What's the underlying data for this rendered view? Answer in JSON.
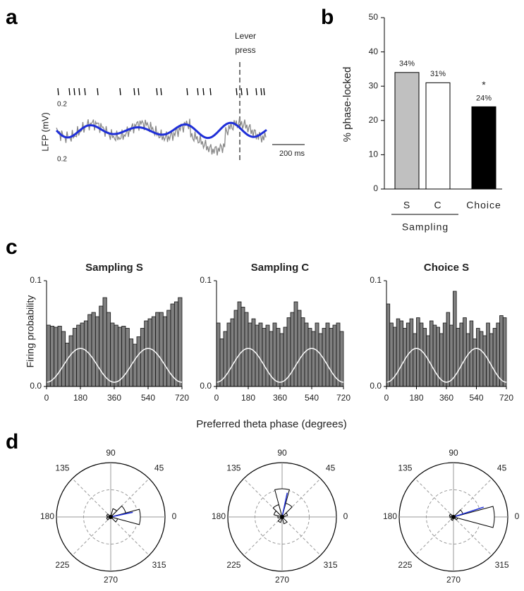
{
  "chart_data": [
    {
      "type": "trace",
      "panel": "a",
      "ylabel": "LFP (mV)",
      "ylabels": [
        "0.2",
        "0.2"
      ],
      "annotation": [
        "Lever",
        "press"
      ],
      "scalebar": "200 ms"
    },
    {
      "type": "bar",
      "panel": "b",
      "ylabel": "% phase-locked",
      "categories": [
        "S",
        "C",
        "Choice"
      ],
      "values": [
        34,
        31,
        24
      ],
      "value_labels": [
        "34%",
        "31%",
        "24%"
      ],
      "colors": [
        "#c0c0c0",
        "#ffffff",
        "#000000"
      ],
      "group_label": "Sampling",
      "annotation": "*",
      "ylim": [
        0,
        50
      ],
      "yticks": [
        0,
        10,
        20,
        30,
        40,
        50
      ]
    },
    {
      "type": "histogram",
      "panel": "c",
      "title": "Sampling S",
      "xlabel": "Preferred theta phase (degrees)",
      "ylabel": "Firing probability",
      "color": "#808080",
      "bins": [
        0,
        20,
        40,
        60,
        80,
        100,
        120,
        140,
        160,
        180,
        200,
        220,
        240,
        260,
        280,
        300,
        320,
        340,
        360,
        380,
        400,
        420,
        440,
        460,
        480,
        500,
        520,
        540,
        560,
        580,
        600,
        620,
        640,
        660,
        680,
        700,
        720
      ],
      "values": [
        0.058,
        0.057,
        0.056,
        0.057,
        0.052,
        0.041,
        0.048,
        0.055,
        0.058,
        0.06,
        0.062,
        0.068,
        0.07,
        0.066,
        0.076,
        0.084,
        0.07,
        0.06,
        0.058,
        0.056,
        0.057,
        0.055,
        0.045,
        0.04,
        0.047,
        0.055,
        0.062,
        0.064,
        0.066,
        0.07,
        0.07,
        0.066,
        0.072,
        0.078,
        0.08,
        0.084
      ],
      "xlim": [
        0,
        720
      ],
      "xticks": [
        0,
        180,
        360,
        540,
        720
      ],
      "ylim": [
        0,
        0.1
      ],
      "yticks": [
        {
          "value": 0,
          "label": "0.0"
        },
        0.1
      ]
    },
    {
      "type": "histogram",
      "title": "Sampling C",
      "color": "#808080",
      "bins": [
        0,
        20,
        40,
        60,
        80,
        100,
        120,
        140,
        160,
        180,
        200,
        220,
        240,
        260,
        280,
        300,
        320,
        340,
        360,
        380,
        400,
        420,
        440,
        460,
        480,
        500,
        520,
        540,
        560,
        580,
        600,
        620,
        640,
        660,
        680,
        700,
        720
      ],
      "values": [
        0.06,
        0.045,
        0.052,
        0.06,
        0.064,
        0.072,
        0.08,
        0.075,
        0.07,
        0.06,
        0.064,
        0.058,
        0.06,
        0.055,
        0.058,
        0.052,
        0.06,
        0.055,
        0.05,
        0.056,
        0.065,
        0.07,
        0.08,
        0.072,
        0.065,
        0.06,
        0.055,
        0.052,
        0.06,
        0.05,
        0.055,
        0.06,
        0.055,
        0.058,
        0.06,
        0.052
      ],
      "xlim": [
        0,
        720
      ],
      "xticks": [
        0,
        180,
        360,
        540,
        720
      ],
      "ylim": [
        0,
        0.1
      ],
      "yticks": [
        {
          "value": 0,
          "label": "0.0"
        },
        0.1
      ]
    },
    {
      "type": "histogram",
      "title": "Choice S",
      "color": "#808080",
      "bins": [
        0,
        20,
        40,
        60,
        80,
        100,
        120,
        140,
        160,
        180,
        200,
        220,
        240,
        260,
        280,
        300,
        320,
        340,
        360,
        380,
        400,
        420,
        440,
        460,
        480,
        500,
        520,
        540,
        560,
        580,
        600,
        620,
        640,
        660,
        680,
        700,
        720
      ],
      "values": [
        0.078,
        0.06,
        0.056,
        0.064,
        0.062,
        0.055,
        0.06,
        0.064,
        0.05,
        0.065,
        0.06,
        0.055,
        0.048,
        0.062,
        0.058,
        0.056,
        0.05,
        0.06,
        0.07,
        0.058,
        0.09,
        0.055,
        0.06,
        0.065,
        0.05,
        0.062,
        0.045,
        0.055,
        0.052,
        0.048,
        0.06,
        0.05,
        0.055,
        0.06,
        0.067,
        0.065
      ],
      "xlim": [
        0,
        720
      ],
      "xticks": [
        0,
        180,
        360,
        540,
        720
      ],
      "ylim": [
        0,
        0.1
      ],
      "yticks": [
        {
          "value": 0,
          "label": "0.0"
        },
        0.1
      ]
    },
    {
      "type": "polar",
      "panel": "d",
      "angles": [
        0,
        45,
        90,
        135,
        180,
        225,
        270,
        315
      ]
    },
    {
      "type": "polar",
      "angles": [
        0,
        45,
        90,
        135,
        180,
        225,
        270,
        315
      ]
    },
    {
      "type": "polar",
      "angles": [
        0,
        45,
        90,
        135,
        180,
        225,
        270,
        315
      ]
    }
  ]
}
